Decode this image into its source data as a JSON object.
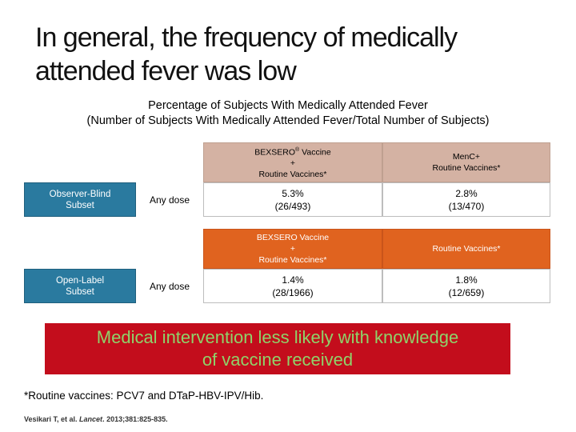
{
  "slide": {
    "title_line1": "In general, the frequency of medically",
    "title_line2": "attended fever was low",
    "subtitle_line1": "Percentage of Subjects With Medically Attended Fever",
    "subtitle_line2": "(Number of Subjects With Medically Attended Fever/Total Number of Subjects)"
  },
  "table1": {
    "col1_header": {
      "line1": "BEXSERO",
      "sup": "®",
      "line1_suffix": " Vaccine",
      "line2": "+",
      "line3": "Routine Vaccines*"
    },
    "col2_header": {
      "line1": "MenC+",
      "line2": "Routine Vaccines*"
    },
    "row_label_line1": "Observer-Blind",
    "row_label_line2": "Subset",
    "dose": "Any dose",
    "col1_pct": "5.3%",
    "col1_n": "(26/493)",
    "col2_pct": "2.8%",
    "col2_n": "(13/470)"
  },
  "table2": {
    "col1_header": {
      "line1": "BEXSERO Vaccine",
      "line2": "+",
      "line3": "Routine Vaccines*"
    },
    "col2_header": "Routine Vaccines*",
    "row_label_line1": "Open-Label",
    "row_label_line2": "Subset",
    "dose": "Any dose",
    "col1_pct": "1.4%",
    "col1_n": "(28/1966)",
    "col2_pct": "1.8%",
    "col2_n": "(12/659)"
  },
  "banner": {
    "line1": "Medical intervention less likely with knowledge",
    "line2": "of vaccine received"
  },
  "footnote": "*Routine vaccines: PCV7 and DTaP-HBV-IPV/Hib.",
  "citation": {
    "authors": "Vesikari T, et al. ",
    "journal": "Lancet",
    "details": ". 2013;381:825-835."
  },
  "colors": {
    "header_tan": "#d4b2a3",
    "header_orange": "#e0631f",
    "subset_blue": "#2a7a9f",
    "banner_red": "#c30d1c",
    "banner_text_green": "#8fd26a"
  }
}
